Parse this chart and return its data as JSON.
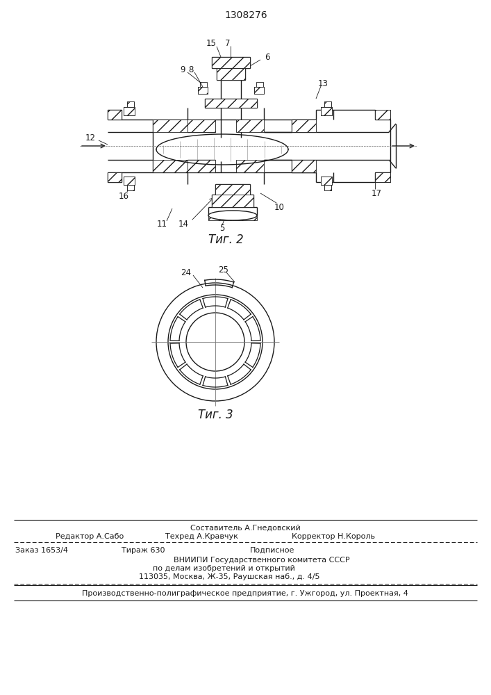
{
  "patent_number": "1308276",
  "line_color": "#1a1a1a",
  "fig2_caption": "Τиг. 2",
  "fig3_caption": "Τиг. 3",
  "footer_line1": "Составитель А.Гнедовский",
  "footer_line2_left": "Редактор А.Сабо",
  "footer_line2_mid": "Техред А.Кравчук",
  "footer_line2_right": "Корректор Н.Король",
  "footer_line3_left": "Заказ 1653/4",
  "footer_line3_mid": "Тираж 630",
  "footer_line3_right": "Подписное",
  "footer_line4": "ВНИИПИ Государственного комитета СССР",
  "footer_line5": "по делам изобретений и открытий",
  "footer_line6": "113035, Москва, Ж-35, Раушская наб., д. 4/5",
  "footer_line7": "Производственно-полиграфическое предприятие, г. Ужгород, ул. Проектная, 4"
}
